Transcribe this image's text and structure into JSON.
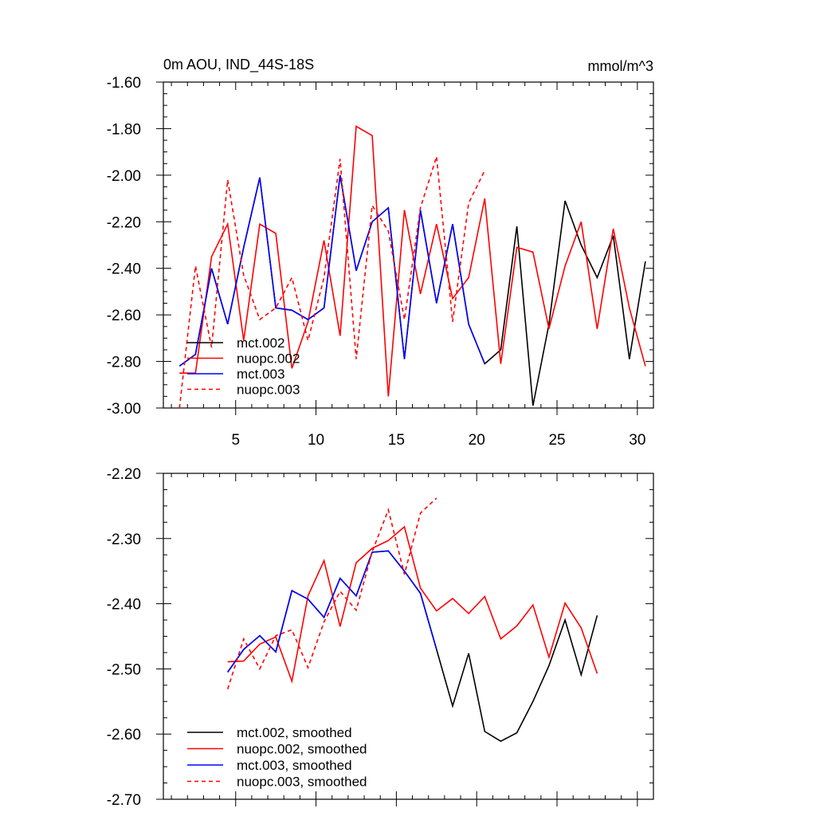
{
  "chart_data": [
    {
      "type": "line",
      "title": "0m AOU, IND_44S-18S",
      "units": "mmol/m^3",
      "xlim": [
        0.5,
        31.0
      ],
      "ylim": [
        -3.0,
        -1.6
      ],
      "xticks": [
        5,
        10,
        15,
        20,
        25,
        30
      ],
      "xtick_labels": [
        "5",
        "10",
        "15",
        "20",
        "25",
        "30"
      ],
      "yticks": [
        -1.6,
        -1.8,
        -2.0,
        -2.2,
        -2.4,
        -2.6,
        -2.8,
        -3.0
      ],
      "ytick_labels": [
        "-1.60",
        "-1.80",
        "-2.00",
        "-2.20",
        "-2.40",
        "-2.60",
        "-2.80",
        "-3.00"
      ],
      "grid": false,
      "legend_position": "bottom-left",
      "series": [
        {
          "name": "mct.002",
          "color": "#000000",
          "dash": "solid",
          "x": [
            1.5,
            2.5,
            3.5,
            4.5,
            5.5,
            6.5,
            7.5,
            8.5,
            9.5,
            10.5,
            11.5,
            12.5,
            13.5,
            14.5,
            15.5,
            16.5,
            17.5,
            18.5,
            19.5,
            20.5,
            21.5,
            22.5,
            23.5,
            24.5,
            25.5,
            26.5,
            27.5,
            28.5,
            29.5,
            30.5
          ],
          "y": [
            -2.82,
            -2.77,
            -2.4,
            -2.64,
            -2.31,
            -2.01,
            -2.57,
            -2.58,
            -2.62,
            -2.57,
            -2.0,
            -2.41,
            -2.2,
            -2.14,
            -2.79,
            -2.15,
            -2.55,
            -2.21,
            -2.64,
            -2.81,
            -2.75,
            -2.22,
            -2.99,
            -2.64,
            -2.11,
            -2.3,
            -2.44,
            -2.26,
            -2.79,
            -2.37
          ]
        },
        {
          "name": "nuopc.002",
          "color": "#ff0000",
          "dash": "solid",
          "x": [
            1.5,
            2.5,
            3.5,
            4.5,
            5.5,
            6.5,
            7.5,
            8.5,
            9.5,
            10.5,
            11.5,
            12.5,
            13.5,
            14.5,
            15.5,
            16.5,
            17.5,
            18.5,
            19.5,
            20.5,
            21.5,
            22.5,
            23.5,
            24.5,
            25.5,
            26.5,
            27.5,
            28.5,
            29.5,
            30.5
          ],
          "y": [
            -2.85,
            -2.85,
            -2.35,
            -2.21,
            -2.71,
            -2.21,
            -2.25,
            -2.83,
            -2.63,
            -2.28,
            -2.69,
            -1.79,
            -1.83,
            -2.95,
            -2.15,
            -2.51,
            -2.21,
            -2.53,
            -2.44,
            -2.1,
            -2.81,
            -2.31,
            -2.33,
            -2.66,
            -2.39,
            -2.2,
            -2.66,
            -2.23,
            -2.57,
            -2.82
          ]
        },
        {
          "name": "mct.003",
          "color": "#0000ff",
          "dash": "solid",
          "x": [
            1.5,
            2.5,
            3.5,
            4.5,
            5.5,
            6.5,
            7.5,
            8.5,
            9.5,
            10.5,
            11.5,
            12.5,
            13.5,
            14.5,
            15.5,
            16.5,
            17.5,
            18.5,
            19.5,
            20.5
          ],
          "y": [
            -2.82,
            -2.77,
            -2.4,
            -2.64,
            -2.31,
            -2.01,
            -2.57,
            -2.58,
            -2.62,
            -2.57,
            -2.0,
            -2.41,
            -2.2,
            -2.14,
            -2.79,
            -2.15,
            -2.55,
            -2.21,
            -2.64,
            -2.81
          ]
        },
        {
          "name": "nuopc.003",
          "color": "#ff0000",
          "dash": "dashed",
          "x": [
            1.5,
            2.5,
            3.5,
            4.5,
            5.5,
            6.5,
            7.5,
            8.5,
            9.5,
            10.5,
            11.5,
            12.5,
            13.5,
            14.5,
            15.5,
            16.5,
            17.5,
            18.5,
            19.5,
            20.5
          ],
          "y": [
            -3.0,
            -2.39,
            -2.74,
            -2.02,
            -2.43,
            -2.62,
            -2.57,
            -2.44,
            -2.71,
            -2.44,
            -1.93,
            -2.79,
            -2.13,
            -2.24,
            -2.62,
            -2.14,
            -1.92,
            -2.63,
            -2.12,
            -1.98
          ]
        }
      ]
    },
    {
      "type": "line",
      "title": "",
      "xlim": [
        0.5,
        31.0
      ],
      "ylim": [
        -2.7,
        -2.2
      ],
      "xticks": [
        5,
        10,
        15,
        20,
        25,
        30
      ],
      "xtick_labels": [],
      "yticks": [
        -2.2,
        -2.3,
        -2.4,
        -2.5,
        -2.6,
        -2.7
      ],
      "ytick_labels": [
        "-2.20",
        "-2.30",
        "-2.40",
        "-2.50",
        "-2.60",
        "-2.70"
      ],
      "grid": false,
      "legend_position": "bottom-left",
      "series": [
        {
          "name": "mct.002, smoothed",
          "color": "#000000",
          "dash": "solid",
          "x": [
            4.5,
            5.5,
            6.5,
            7.5,
            8.5,
            9.5,
            10.5,
            11.5,
            12.5,
            13.5,
            14.5,
            15.5,
            16.5,
            17.5,
            18.5,
            19.5,
            20.5,
            21.5,
            22.5,
            23.5,
            24.5,
            25.5,
            26.5,
            27.5
          ],
          "y": [
            -2.505,
            -2.47,
            -2.449,
            -2.474,
            -2.38,
            -2.393,
            -2.421,
            -2.361,
            -2.388,
            -2.321,
            -2.319,
            -2.35,
            -2.384,
            -2.47,
            -2.557,
            -2.476,
            -2.596,
            -2.611,
            -2.598,
            -2.55,
            -2.495,
            -2.425,
            -2.509,
            -2.418
          ]
        },
        {
          "name": "nuopc.002, smoothed",
          "color": "#ff0000",
          "dash": "solid",
          "x": [
            4.5,
            5.5,
            6.5,
            7.5,
            8.5,
            9.5,
            10.5,
            11.5,
            12.5,
            13.5,
            14.5,
            15.5,
            16.5,
            17.5,
            18.5,
            19.5,
            20.5,
            21.5,
            22.5,
            23.5,
            24.5,
            25.5,
            26.5,
            27.5
          ],
          "y": [
            -2.489,
            -2.488,
            -2.462,
            -2.451,
            -2.519,
            -2.388,
            -2.334,
            -2.435,
            -2.337,
            -2.315,
            -2.303,
            -2.282,
            -2.376,
            -2.411,
            -2.392,
            -2.415,
            -2.389,
            -2.454,
            -2.434,
            -2.402,
            -2.482,
            -2.399,
            -2.437,
            -2.507
          ]
        },
        {
          "name": "mct.003, smoothed",
          "color": "#0000ff",
          "dash": "solid",
          "x": [
            4.5,
            5.5,
            6.5,
            7.5,
            8.5,
            9.5,
            10.5,
            11.5,
            12.5,
            13.5,
            14.5,
            15.5,
            16.5,
            17.5
          ],
          "y": [
            -2.505,
            -2.47,
            -2.449,
            -2.474,
            -2.38,
            -2.393,
            -2.421,
            -2.361,
            -2.388,
            -2.321,
            -2.319,
            -2.35,
            -2.384,
            -2.47
          ]
        },
        {
          "name": "nuopc.003, smoothed",
          "color": "#ff0000",
          "dash": "dashed",
          "x": [
            4.5,
            5.5,
            6.5,
            7.5,
            8.5,
            9.5,
            10.5,
            11.5,
            12.5,
            13.5,
            14.5,
            15.5,
            16.5,
            17.5
          ],
          "y": [
            -2.531,
            -2.454,
            -2.5,
            -2.449,
            -2.44,
            -2.498,
            -2.428,
            -2.381,
            -2.41,
            -2.32,
            -2.256,
            -2.355,
            -2.261,
            -2.238
          ]
        }
      ]
    }
  ]
}
